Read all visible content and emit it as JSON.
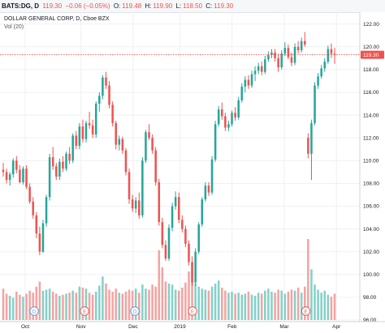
{
  "header": {
    "symbol": "BATS:DG, D",
    "last": "119.30",
    "change": "−0.06 (−0.05%)",
    "open_label": "O:",
    "open": "119.48",
    "high_label": "H:",
    "high": "119.90",
    "low_label": "L:",
    "low": "118.50",
    "close_label": "C:",
    "close": "119.30"
  },
  "legend": {
    "title": "DOLLAR GENERAL CORP, D, Cboe BZX",
    "volume": "Vol (20)"
  },
  "colors": {
    "up": "#26a69a",
    "down": "#ef5350",
    "vol_up": "#85d0c8",
    "vol_down": "#f3a3a2",
    "price_line": "#ef5350",
    "grid": "#eef0f3",
    "axis_bg": "#ffffff"
  },
  "chart_data": {
    "type": "candlestick",
    "ylim": [
      96.0,
      122.9
    ],
    "y_ticks": [
      "122.00",
      "120.00",
      "118.00",
      "116.00",
      "114.00",
      "112.00",
      "110.00",
      "108.00",
      "106.00",
      "104.00",
      "102.00",
      "100.00",
      "98.00",
      "96.00"
    ],
    "x_labels": [
      "Oct",
      "Nov",
      "Dec",
      "2019",
      "Feb",
      "Mar",
      "Apr"
    ],
    "last_price_label": "119.30",
    "last_price": 119.3,
    "event_markers": [
      {
        "label": "D"
      },
      {
        "label": "E"
      },
      {
        "label": "D"
      },
      {
        "label": "E"
      },
      {
        "label": "E"
      }
    ],
    "candles": [
      [
        109.2,
        109.8,
        108.6,
        109.0
      ],
      [
        109.0,
        109.3,
        108.0,
        108.3
      ],
      [
        108.3,
        109.0,
        107.8,
        108.8
      ],
      [
        108.8,
        110.2,
        108.5,
        110.0
      ],
      [
        110.0,
        110.4,
        108.9,
        109.2
      ],
      [
        109.2,
        109.6,
        108.0,
        108.1
      ],
      [
        108.1,
        109.5,
        107.9,
        109.3
      ],
      [
        109.3,
        109.6,
        107.5,
        107.7
      ],
      [
        107.7,
        108.0,
        106.2,
        106.4
      ],
      [
        106.4,
        106.8,
        104.9,
        105.2
      ],
      [
        105.2,
        105.5,
        103.2,
        103.6
      ],
      [
        103.6,
        104.2,
        101.7,
        102.0
      ],
      [
        102.0,
        104.8,
        101.9,
        104.5
      ],
      [
        104.5,
        107.0,
        104.2,
        106.8
      ],
      [
        106.8,
        110.6,
        106.5,
        110.3
      ],
      [
        110.3,
        111.2,
        109.2,
        109.5
      ],
      [
        109.5,
        109.8,
        108.3,
        108.6
      ],
      [
        108.6,
        110.2,
        108.3,
        109.9
      ],
      [
        109.9,
        110.4,
        109.0,
        109.3
      ],
      [
        109.3,
        110.8,
        109.1,
        110.6
      ],
      [
        110.6,
        111.2,
        109.7,
        110.0
      ],
      [
        110.0,
        112.4,
        109.8,
        112.2
      ],
      [
        112.2,
        112.6,
        111.0,
        111.3
      ],
      [
        111.3,
        113.3,
        111.0,
        113.0
      ],
      [
        113.0,
        113.6,
        111.6,
        111.9
      ],
      [
        111.9,
        113.5,
        111.6,
        113.3
      ],
      [
        113.3,
        114.3,
        112.8,
        113.1
      ],
      [
        113.1,
        113.6,
        112.0,
        112.3
      ],
      [
        112.3,
        115.2,
        112.0,
        115.0
      ],
      [
        115.0,
        116.0,
        114.3,
        115.7
      ],
      [
        115.7,
        117.5,
        115.4,
        117.3
      ],
      [
        117.3,
        117.8,
        116.3,
        116.6
      ],
      [
        116.6,
        117.0,
        114.6,
        114.9
      ],
      [
        114.9,
        115.2,
        113.0,
        113.3
      ],
      [
        113.3,
        113.5,
        111.0,
        111.4
      ],
      [
        111.4,
        112.2,
        110.9,
        111.9
      ],
      [
        111.9,
        112.1,
        110.6,
        110.9
      ],
      [
        110.9,
        111.1,
        108.7,
        109.0
      ],
      [
        109.0,
        109.3,
        106.2,
        106.6
      ],
      [
        106.6,
        107.0,
        105.5,
        105.8
      ],
      [
        105.8,
        106.8,
        105.4,
        106.5
      ],
      [
        106.5,
        107.2,
        104.9,
        105.2
      ],
      [
        105.2,
        110.3,
        105.0,
        110.0
      ],
      [
        110.0,
        112.7,
        109.8,
        112.5
      ],
      [
        112.5,
        113.2,
        111.8,
        112.0
      ],
      [
        112.0,
        112.3,
        110.6,
        110.9
      ],
      [
        110.9,
        111.2,
        107.8,
        108.1
      ],
      [
        108.1,
        108.4,
        104.3,
        104.6
      ],
      [
        104.6,
        105.0,
        102.3,
        102.6
      ],
      [
        102.6,
        103.0,
        101.2,
        101.4
      ],
      [
        101.4,
        104.4,
        101.2,
        104.1
      ],
      [
        104.1,
        106.3,
        103.8,
        106.0
      ],
      [
        106.0,
        107.3,
        105.7,
        106.8
      ],
      [
        106.8,
        107.2,
        104.5,
        104.8
      ],
      [
        104.8,
        105.2,
        103.7,
        104.0
      ],
      [
        104.0,
        104.3,
        102.4,
        102.7
      ],
      [
        102.7,
        103.0,
        100.8,
        101.1
      ],
      [
        101.1,
        101.6,
        99.0,
        99.3
      ],
      [
        99.3,
        102.3,
        99.0,
        102.0
      ],
      [
        102.0,
        104.6,
        101.8,
        104.4
      ],
      [
        104.4,
        106.8,
        104.2,
        106.6
      ],
      [
        106.6,
        108.1,
        106.4,
        107.8
      ],
      [
        107.8,
        108.1,
        106.9,
        107.2
      ],
      [
        107.2,
        110.4,
        107.0,
        110.1
      ],
      [
        110.1,
        113.5,
        109.9,
        113.2
      ],
      [
        113.2,
        114.8,
        113.0,
        114.5
      ],
      [
        114.5,
        115.1,
        113.6,
        113.9
      ],
      [
        113.9,
        114.2,
        112.6,
        112.9
      ],
      [
        112.9,
        113.5,
        112.6,
        113.2
      ],
      [
        113.2,
        114.4,
        113.0,
        114.2
      ],
      [
        114.2,
        114.7,
        113.5,
        113.8
      ],
      [
        113.8,
        115.6,
        113.6,
        115.3
      ],
      [
        115.3,
        116.8,
        115.1,
        116.5
      ],
      [
        116.5,
        117.4,
        116.0,
        117.1
      ],
      [
        117.1,
        117.5,
        116.3,
        116.6
      ],
      [
        116.6,
        117.9,
        116.4,
        117.6
      ],
      [
        117.6,
        118.3,
        117.0,
        117.9
      ],
      [
        117.9,
        118.6,
        117.6,
        118.3
      ],
      [
        118.3,
        118.7,
        117.5,
        117.8
      ],
      [
        117.8,
        119.2,
        117.6,
        118.9
      ],
      [
        118.9,
        119.6,
        118.7,
        119.3
      ],
      [
        119.3,
        119.8,
        119.0,
        119.5
      ],
      [
        119.5,
        119.8,
        118.7,
        119.0
      ],
      [
        119.0,
        119.4,
        117.8,
        118.2
      ],
      [
        118.2,
        119.7,
        118.0,
        119.4
      ],
      [
        119.4,
        120.4,
        119.2,
        119.9
      ],
      [
        119.9,
        120.2,
        118.9,
        119.1
      ],
      [
        119.1,
        119.5,
        118.3,
        118.6
      ],
      [
        118.6,
        120.3,
        118.4,
        120.0
      ],
      [
        120.0,
        120.5,
        119.4,
        119.7
      ],
      [
        119.7,
        120.8,
        119.5,
        120.5
      ],
      [
        120.5,
        121.3,
        120.0,
        120.2
      ],
      [
        112.0,
        112.4,
        110.2,
        110.6
      ],
      [
        110.6,
        113.6,
        108.3,
        113.3
      ],
      [
        113.3,
        116.9,
        113.1,
        116.6
      ],
      [
        116.6,
        117.7,
        116.3,
        117.4
      ],
      [
        117.4,
        118.4,
        117.2,
        118.1
      ],
      [
        118.1,
        119.0,
        117.8,
        118.7
      ],
      [
        118.7,
        120.1,
        118.5,
        119.8
      ],
      [
        119.8,
        120.3,
        119.0,
        119.4
      ],
      [
        119.4,
        119.9,
        118.5,
        119.3
      ]
    ],
    "volume": [
      3.1,
      2.6,
      2.4,
      2.2,
      2.8,
      2.5,
      2.3,
      2.6,
      2.9,
      2.7,
      3.3,
      3.8,
      2.9,
      3.0,
      3.1,
      2.8,
      2.6,
      2.4,
      2.5,
      2.6,
      2.7,
      2.9,
      2.7,
      3.3,
      3.2,
      3.1,
      2.7,
      2.5,
      2.8,
      3.4,
      4.3,
      3.6,
      3.0,
      2.8,
      3.1,
      2.7,
      2.6,
      2.8,
      3.0,
      2.9,
      3.1,
      2.7,
      3.5,
      3.1,
      3.0,
      3.5,
      3.3,
      6.9,
      5.2,
      3.8,
      3.6,
      3.5,
      3.0,
      2.9,
      3.2,
      3.7,
      4.8,
      5.6,
      3.6,
      3.3,
      3.1,
      3.0,
      2.9,
      3.3,
      3.6,
      3.9,
      3.2,
      2.9,
      2.7,
      2.8,
      2.6,
      2.7,
      2.5,
      2.6,
      2.8,
      2.5,
      2.4,
      2.7,
      2.6,
      2.9,
      3.1,
      2.8,
      2.7,
      3.0,
      2.9,
      2.6,
      2.8,
      3.0,
      2.9,
      3.2,
      2.7,
      3.3,
      8.0,
      5.0,
      3.5,
      3.0,
      2.7,
      2.9,
      2.5,
      2.3,
      2.6
    ]
  }
}
